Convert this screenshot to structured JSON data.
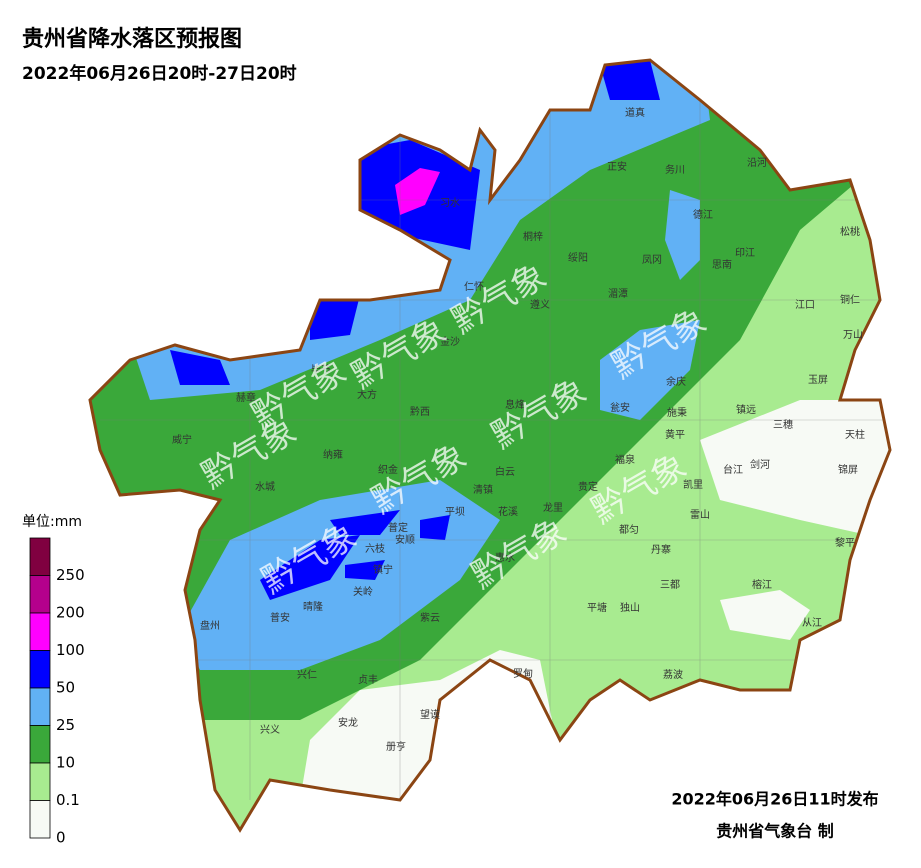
{
  "title": "贵州省降水落区预报图",
  "subtitle": "2022年06月26日20时-27日20时",
  "watermark": "黔气象",
  "legend": {
    "title": "单位:mm",
    "labels": [
      250,
      200,
      100,
      50,
      25,
      10,
      0.1,
      0
    ],
    "colors": [
      "#800040",
      "#b4008c",
      "#ff00ff",
      "#0000ff",
      "#61b1f5",
      "#3aa83a",
      "#a8eb90",
      "#f7faf5"
    ]
  },
  "footer": {
    "issued": "2022年06月26日11时发布",
    "author": "贵州省气象台 制"
  },
  "counties": [
    "道真",
    "习水",
    "正安",
    "务川",
    "沿河",
    "松桃",
    "德江",
    "桐梓",
    "绥阳",
    "凤冈",
    "印江",
    "思南",
    "仁怀",
    "湄潭",
    "江口",
    "铜仁",
    "万山",
    "遵义",
    "金沙",
    "毕节",
    "大方",
    "赫章",
    "余庆",
    "玉屏",
    "息烽",
    "黔西",
    "瓮安",
    "施秉",
    "镇远",
    "三穗",
    "天柱",
    "威宁",
    "黄平",
    "纳雍",
    "织金",
    "白云",
    "福泉",
    "台江",
    "剑河",
    "锦屏",
    "水城",
    "清镇",
    "贵定",
    "凯里",
    "平坝",
    "花溪",
    "龙里",
    "雷山",
    "普定",
    "安顺",
    "都匀",
    "黎平",
    "六枝",
    "丹寨",
    "镇宁",
    "惠水",
    "关岭",
    "三都",
    "盘州",
    "普安",
    "晴隆",
    "紫云",
    "平塘",
    "独山",
    "榕江",
    "从江",
    "兴仁",
    "贞丰",
    "罗甸",
    "荔波",
    "兴义",
    "安龙",
    "望谟",
    "册亨"
  ]
}
